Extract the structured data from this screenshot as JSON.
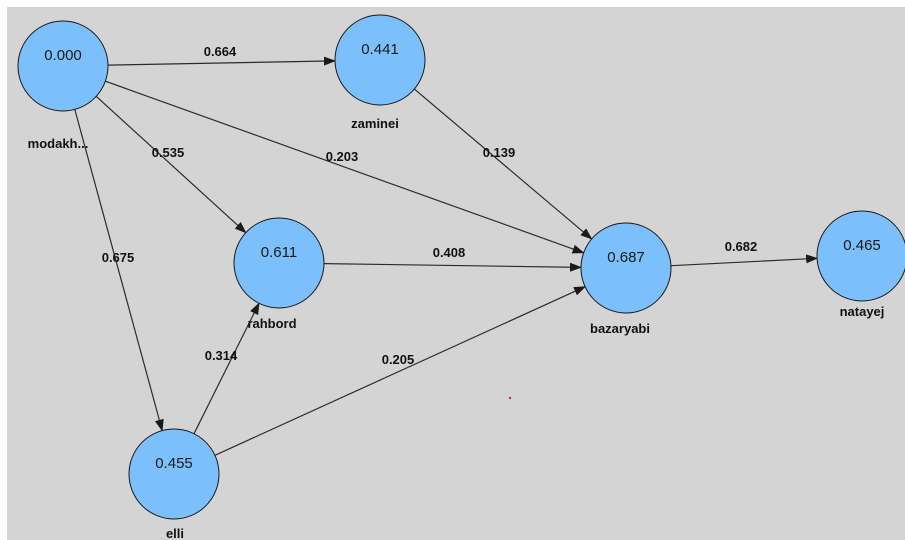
{
  "diagram": {
    "nodes": [
      {
        "id": "modakh",
        "value": "0.000",
        "label": "modakh..."
      },
      {
        "id": "zaminei",
        "value": "0.441",
        "label": "zaminei"
      },
      {
        "id": "rahbord",
        "value": "0.611",
        "label": "rahbord"
      },
      {
        "id": "bazaryabi",
        "value": "0.687",
        "label": "bazaryabi"
      },
      {
        "id": "natayej",
        "value": "0.465",
        "label": "natayej"
      },
      {
        "id": "elli",
        "value": "0.455",
        "label": "elli"
      }
    ],
    "edges": [
      {
        "from": "modakh",
        "to": "zaminei",
        "weight": "0.664"
      },
      {
        "from": "modakh",
        "to": "rahbord",
        "weight": "0.535"
      },
      {
        "from": "modakh",
        "to": "bazaryabi",
        "weight": "0.203"
      },
      {
        "from": "modakh",
        "to": "elli",
        "weight": "0.675"
      },
      {
        "from": "zaminei",
        "to": "bazaryabi",
        "weight": "0.139"
      },
      {
        "from": "rahbord",
        "to": "bazaryabi",
        "weight": "0.408"
      },
      {
        "from": "elli",
        "to": "rahbord",
        "weight": "0.314"
      },
      {
        "from": "elli",
        "to": "bazaryabi",
        "weight": "0.205"
      },
      {
        "from": "bazaryabi",
        "to": "natayej",
        "weight": "0.682"
      }
    ]
  },
  "colors": {
    "node_fill": "#7cbffd",
    "background": "#d4d4d4",
    "edge": "#2b2b2b"
  }
}
